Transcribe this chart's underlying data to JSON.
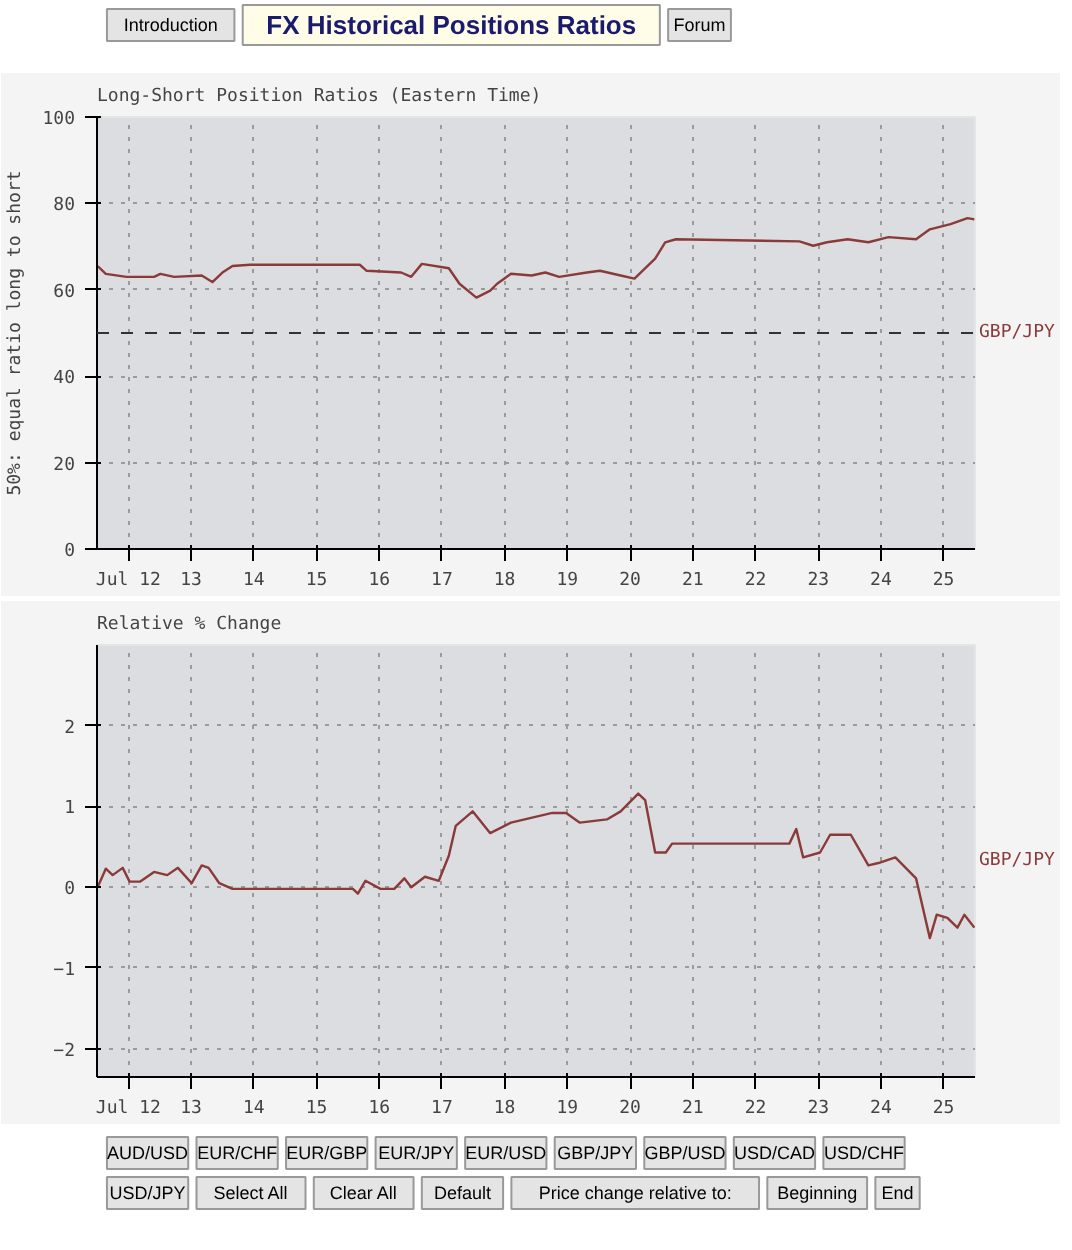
{
  "chart_data": [
    {
      "type": "other",
      "title": "FX Historical Positions Ratios",
      "annotations": [
        "Introduction",
        "Forum"
      ]
    },
    {
      "type": "line",
      "title": "Long-Short Position Ratios (Eastern Time)",
      "ylabel": "50%: equal ratio long to short",
      "xlim": [
        11.5,
        25.5
      ],
      "xticks": [
        {
          "value": 12,
          "label": "Jul 12"
        },
        13,
        14,
        15,
        16,
        17,
        18,
        19,
        20,
        21,
        22,
        23,
        24,
        25
      ],
      "ylim": [
        0,
        100
      ],
      "yticks": [
        0,
        20,
        40,
        60,
        80,
        100
      ],
      "grid": true,
      "ref_lines": [
        {
          "axis": "y",
          "value": 50,
          "line_style": "dashed",
          "color": "#333333"
        }
      ],
      "series": [
        {
          "name": "GBP/JPY",
          "color": "#8b3a3a",
          "x": [
            11.51,
            11.64,
            11.97,
            12.41,
            12.51,
            12.73,
            13.17,
            13.34,
            13.5,
            13.66,
            13.94,
            15.69,
            15.8,
            16.35,
            16.51,
            16.68,
            17.11,
            17.28,
            17.55,
            17.77,
            17.88,
            18.1,
            18.43,
            18.65,
            18.87,
            19.31,
            19.52,
            19.85,
            20.07,
            20.4,
            20.56,
            20.73,
            22.7,
            22.92,
            23.14,
            23.47,
            23.8,
            24.12,
            24.56,
            24.78,
            25.11,
            25.38,
            25.49
          ],
          "values": [
            65.5,
            63.7,
            63,
            63,
            63.7,
            63,
            63.3,
            61.8,
            64,
            65.5,
            65.8,
            65.8,
            64.4,
            64,
            63,
            66,
            65,
            61.4,
            58.2,
            59.8,
            61.4,
            63.7,
            63.3,
            64,
            63,
            64,
            64.4,
            63.3,
            62.6,
            67.2,
            71,
            71.7,
            71.2,
            70.2,
            71,
            71.7,
            71,
            72.2,
            71.7,
            74,
            75.2,
            76.6,
            76.3
          ]
        }
      ]
    },
    {
      "type": "line",
      "title": "Relative % Change",
      "xlim": [
        11.5,
        25.5
      ],
      "xticks": [
        {
          "value": 12,
          "label": "Jul 12"
        },
        13,
        14,
        15,
        16,
        17,
        18,
        19,
        20,
        21,
        22,
        23,
        24,
        25
      ],
      "ylim": [
        -2.35,
        3
      ],
      "yticks": [
        -2,
        -1,
        0,
        1,
        2
      ],
      "grid": true,
      "series": [
        {
          "name": "GBP/JPY",
          "color": "#8b3a3a",
          "x": [
            11.51,
            11.64,
            11.75,
            11.91,
            12.02,
            12.19,
            12.41,
            12.62,
            12.79,
            13.01,
            13.17,
            13.28,
            13.45,
            13.66,
            15.58,
            15.66,
            15.78,
            16.02,
            16.24,
            16.4,
            16.51,
            16.73,
            16.95,
            17.11,
            17.22,
            17.49,
            17.77,
            18.1,
            18.32,
            18.54,
            18.76,
            18.98,
            19.2,
            19.63,
            19.85,
            20.13,
            20.24,
            20.4,
            20.57,
            20.67,
            22.54,
            22.65,
            22.76,
            23.03,
            23.19,
            23.52,
            23.8,
            23.96,
            24.23,
            24.56,
            24.78,
            24.89,
            25.06,
            25.22,
            25.33,
            25.49
          ],
          "values": [
            0,
            0.23,
            0.15,
            0.24,
            0.07,
            0.07,
            0.19,
            0.15,
            0.24,
            0.05,
            0.27,
            0.24,
            0.05,
            -0.02,
            -0.02,
            -0.08,
            0.08,
            -0.02,
            -0.02,
            0.11,
            0,
            0.13,
            0.08,
            0.39,
            0.76,
            0.94,
            0.67,
            0.8,
            0.84,
            0.88,
            0.92,
            0.92,
            0.8,
            0.84,
            0.94,
            1.16,
            1.08,
            0.43,
            0.43,
            0.54,
            0.54,
            0.72,
            0.37,
            0.43,
            0.65,
            0.65,
            0.27,
            0.3,
            0.37,
            0.11,
            -0.63,
            -0.34,
            -0.38,
            -0.5,
            -0.34,
            -0.5
          ]
        }
      ]
    },
    {
      "type": "other",
      "annotations": [
        "AUD/USD",
        "EUR/CHF",
        "EUR/GBP",
        "EUR/JPY",
        "EUR/USD",
        "GBP/JPY",
        "GBP/USD",
        "USD/CAD",
        "USD/CHF",
        "USD/JPY",
        "Select All",
        "Clear All",
        "Default",
        "Price change relative to:",
        "Beginning",
        "End"
      ]
    }
  ]
}
